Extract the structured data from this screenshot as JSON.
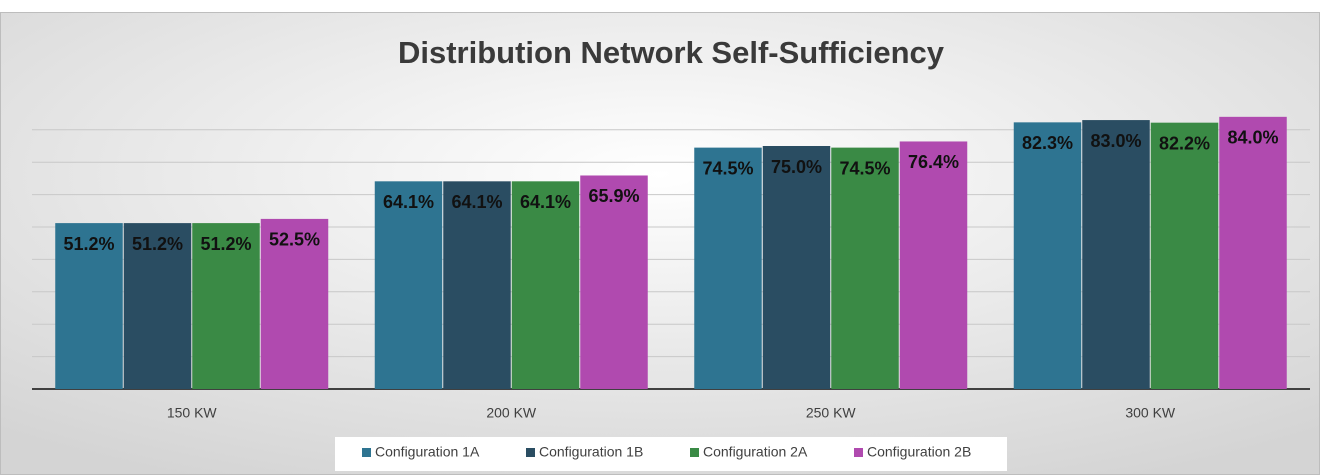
{
  "chart_data": {
    "type": "bar",
    "title": "Distribution Network Self-Sufficiency",
    "categories": [
      "150 KW",
      "200 KW",
      "250 KW",
      "300 KW"
    ],
    "series": [
      {
        "name": "Configuration 1A",
        "color": "#2e7491",
        "values": [
          51.2,
          64.1,
          74.5,
          82.3
        ],
        "value_labels": [
          "51.2%",
          "64.1%",
          "74.5%",
          "82.3%"
        ]
      },
      {
        "name": "Configuration 1B",
        "color": "#2a4d62",
        "values": [
          51.2,
          64.1,
          75.0,
          83.0
        ],
        "value_labels": [
          "51.2%",
          "64.1%",
          "75.0%",
          "83.0%"
        ]
      },
      {
        "name": "Configuration 2A",
        "color": "#3a8a45",
        "values": [
          51.2,
          64.1,
          74.5,
          82.2
        ],
        "value_labels": [
          "51.2%",
          "64.1%",
          "74.5%",
          "82.2%"
        ]
      },
      {
        "name": "Configuration 2B",
        "color": "#b04aaf",
        "values": [
          52.5,
          65.9,
          76.4,
          84.0
        ],
        "value_labels": [
          "52.5%",
          "65.9%",
          "76.4%",
          "84.0%"
        ]
      }
    ],
    "ylim": [
      0,
      90
    ],
    "yticks": [
      0,
      10,
      20,
      30,
      40,
      50,
      60,
      70,
      80
    ],
    "grid": true,
    "legend": "bottom"
  }
}
